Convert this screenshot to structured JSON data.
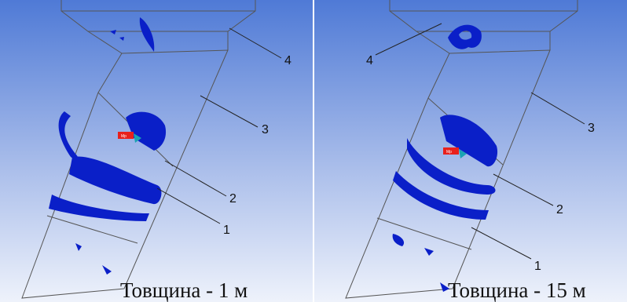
{
  "panels": [
    {
      "caption": "Товщина - 1 м",
      "callouts": [
        "4",
        "3",
        "2",
        "1"
      ],
      "marker": "Mp"
    },
    {
      "caption": "Товщина - 15 м",
      "callouts": [
        "4",
        "3",
        "2",
        "1"
      ],
      "marker": "Mp"
    }
  ],
  "colors": {
    "background_top": "#4f7ad6",
    "background_bottom": "#eef2fb",
    "body_fill": "#0a1fc8",
    "outline": "#555555",
    "marker": "#e8201c"
  }
}
